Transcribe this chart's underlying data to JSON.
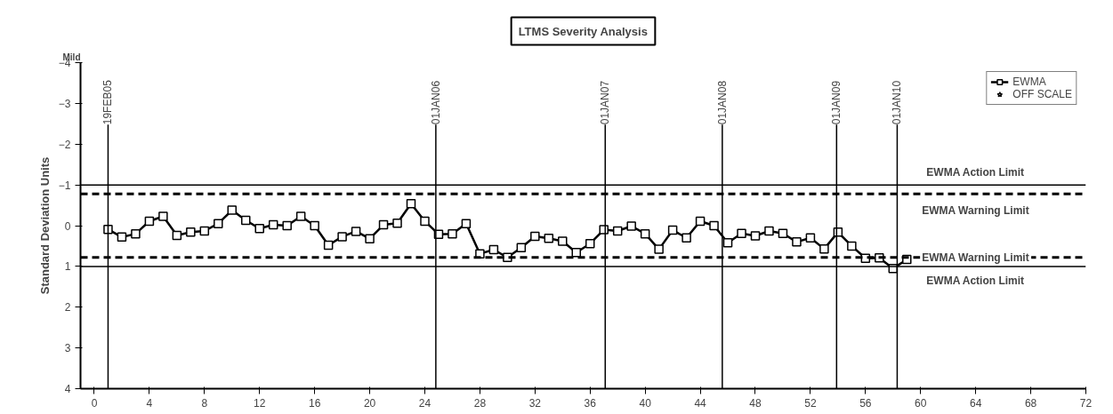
{
  "chart_data": {
    "type": "line",
    "title": "LTMS Severity Analysis",
    "ylabel": "Standard Deviation Units",
    "annotations": [
      "Mild"
    ],
    "x": [
      1,
      2,
      3,
      4,
      5,
      6,
      7,
      8,
      9,
      10,
      11,
      12,
      13,
      14,
      15,
      16,
      17,
      18,
      19,
      20,
      21,
      22,
      23,
      24,
      25,
      26,
      27,
      28,
      29,
      30,
      31,
      32,
      33,
      34,
      35,
      36,
      37,
      38,
      39,
      40,
      41,
      42,
      43,
      44,
      45,
      46,
      47,
      48,
      49,
      50,
      51,
      52,
      53,
      54,
      55,
      56,
      57,
      58,
      59
    ],
    "series": [
      {
        "name": "EWMA",
        "color": "#000000",
        "marker": "square",
        "values": [
          0.09,
          0.28,
          0.2,
          -0.11,
          -0.23,
          0.24,
          0.16,
          0.13,
          -0.05,
          -0.38,
          -0.13,
          0.07,
          -0.02,
          0,
          -0.23,
          0,
          0.48,
          0.27,
          0.14,
          0.32,
          -0.02,
          -0.06,
          -0.54,
          -0.11,
          0.21,
          0.2,
          -0.05,
          0.69,
          0.59,
          0.78,
          0.54,
          0.26,
          0.31,
          0.38,
          0.66,
          0.44,
          0.1,
          0.13,
          0.01,
          0.2,
          0.58,
          0.11,
          0.3,
          -0.11,
          0,
          0.42,
          0.19,
          0.25,
          0.13,
          0.19,
          0.4,
          0.3,
          0.57,
          0.16,
          0.5,
          0.8,
          0.79,
          1.05,
          0.83
        ]
      },
      {
        "name": "OFF SCALE",
        "color": "#000000",
        "marker": "star",
        "line_style": "none",
        "values": [
          null,
          null,
          null,
          null,
          null,
          null,
          null,
          null,
          null,
          null,
          null,
          null,
          null,
          null,
          null,
          null,
          null,
          null,
          null,
          null,
          null,
          null,
          null,
          null,
          null,
          null,
          null,
          null,
          null,
          null,
          null,
          null,
          null,
          null,
          null,
          null,
          null,
          null,
          null,
          null,
          null,
          null,
          null,
          null,
          null,
          null,
          null,
          null,
          null,
          null,
          null,
          null,
          null,
          null,
          null,
          null,
          null,
          null,
          null
        ]
      }
    ],
    "ref_lines": [
      {
        "axis": "y",
        "value": -1,
        "label": "EWMA Action Limit",
        "line_style": "solid"
      },
      {
        "axis": "y",
        "value": -0.78,
        "label": "EWMA Warning Limit",
        "line_style": "dashed"
      },
      {
        "axis": "y",
        "value": 0.78,
        "label": "EWMA Warning Limit",
        "line_style": "dashed"
      },
      {
        "axis": "y",
        "value": 1,
        "label": "EWMA Action Limit",
        "line_style": "solid"
      },
      {
        "axis": "x",
        "value": 1,
        "label": "19FEB05",
        "line_style": "solid"
      },
      {
        "axis": "x",
        "value": 24.8,
        "label": "01JAN06",
        "line_style": "solid"
      },
      {
        "axis": "x",
        "value": 37.1,
        "label": "01JAN07",
        "line_style": "solid"
      },
      {
        "axis": "x",
        "value": 45.6,
        "label": "01JAN08",
        "line_style": "solid"
      },
      {
        "axis": "x",
        "value": 53.9,
        "label": "01JAN09",
        "line_style": "solid"
      },
      {
        "axis": "x",
        "value": 58.3,
        "label": "01JAN10",
        "line_style": "solid"
      }
    ],
    "xlim": [
      -1,
      72
    ],
    "xticks": [
      0,
      4,
      8,
      12,
      16,
      20,
      24,
      28,
      32,
      36,
      40,
      44,
      48,
      52,
      56,
      60,
      64,
      68,
      72
    ],
    "ylim": [
      4,
      -4
    ],
    "yticks": [
      -4,
      -3,
      -2,
      -1,
      0,
      1,
      2,
      3,
      4
    ],
    "grid": false,
    "legend": "top right",
    "line_style": "solid"
  }
}
